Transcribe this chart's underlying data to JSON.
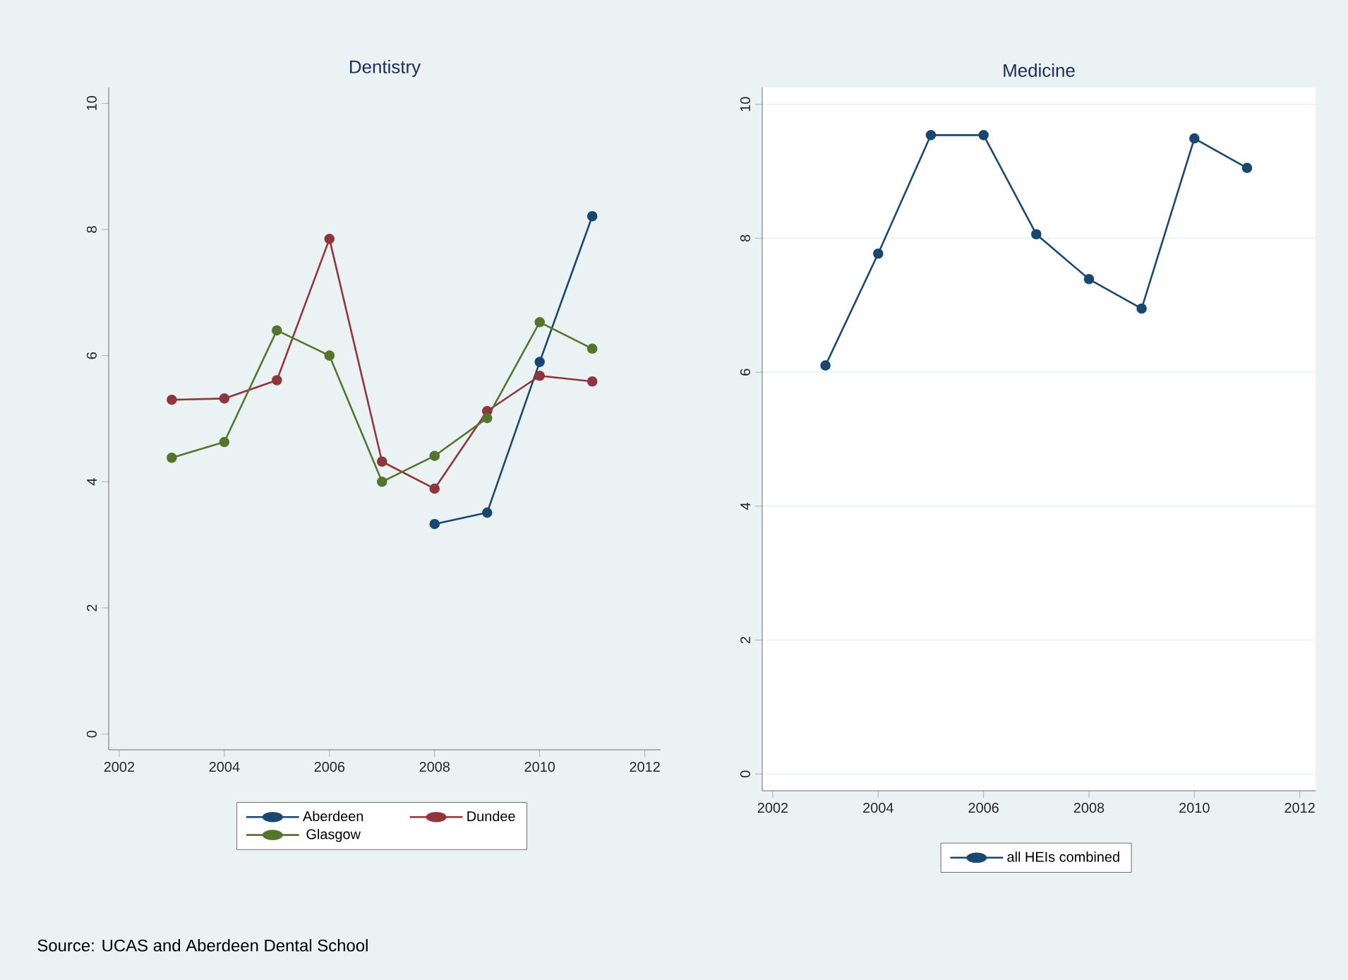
{
  "chart_data": [
    {
      "type": "line",
      "title": "Dentistry",
      "x": [
        2003,
        2004,
        2005,
        2006,
        2007,
        2008,
        2009,
        2010,
        2011
      ],
      "series": [
        {
          "name": "Aberdeen",
          "color": "#1a476f",
          "values": [
            null,
            null,
            null,
            null,
            null,
            3.33,
            3.51,
            5.9,
            8.21
          ]
        },
        {
          "name": "Dundee",
          "color": "#90353b",
          "values": [
            5.3,
            5.32,
            5.61,
            7.85,
            4.32,
            3.89,
            5.12,
            5.68,
            5.59
          ]
        },
        {
          "name": "Glasgow",
          "color": "#55752f",
          "values": [
            4.38,
            4.63,
            6.4,
            6.0,
            4.0,
            4.41,
            5.01,
            6.53,
            6.11
          ]
        }
      ],
      "xlim": [
        2001.8,
        2012.3
      ],
      "xticks": [
        2002,
        2004,
        2006,
        2008,
        2010,
        2012
      ],
      "ylim": [
        -0.25,
        10.25
      ],
      "yticks": [
        0,
        2,
        4,
        6,
        8,
        10
      ],
      "grid": false,
      "legend": "bottom",
      "marker": "circle",
      "line_style": "solid",
      "annotations": [
        "Source: UCAS and Aberdeen Dental School"
      ]
    },
    {
      "type": "line",
      "title": "Medicine",
      "x": [
        2003,
        2004,
        2005,
        2006,
        2007,
        2008,
        2009,
        2010,
        2011
      ],
      "series": [
        {
          "name": "all HEIs combined",
          "color": "#1a476f",
          "values": [
            6.1,
            7.77,
            9.54,
            9.54,
            8.06,
            7.39,
            6.95,
            9.49,
            9.05
          ]
        }
      ],
      "xlim": [
        2001.8,
        2012.3
      ],
      "xticks": [
        2002,
        2004,
        2006,
        2008,
        2010,
        2012
      ],
      "ylim": [
        -0.25,
        10.25
      ],
      "yticks": [
        0,
        2,
        4,
        6,
        8,
        10
      ],
      "grid": "y",
      "legend": "bottom",
      "marker": "circle",
      "line_style": "solid"
    }
  ]
}
